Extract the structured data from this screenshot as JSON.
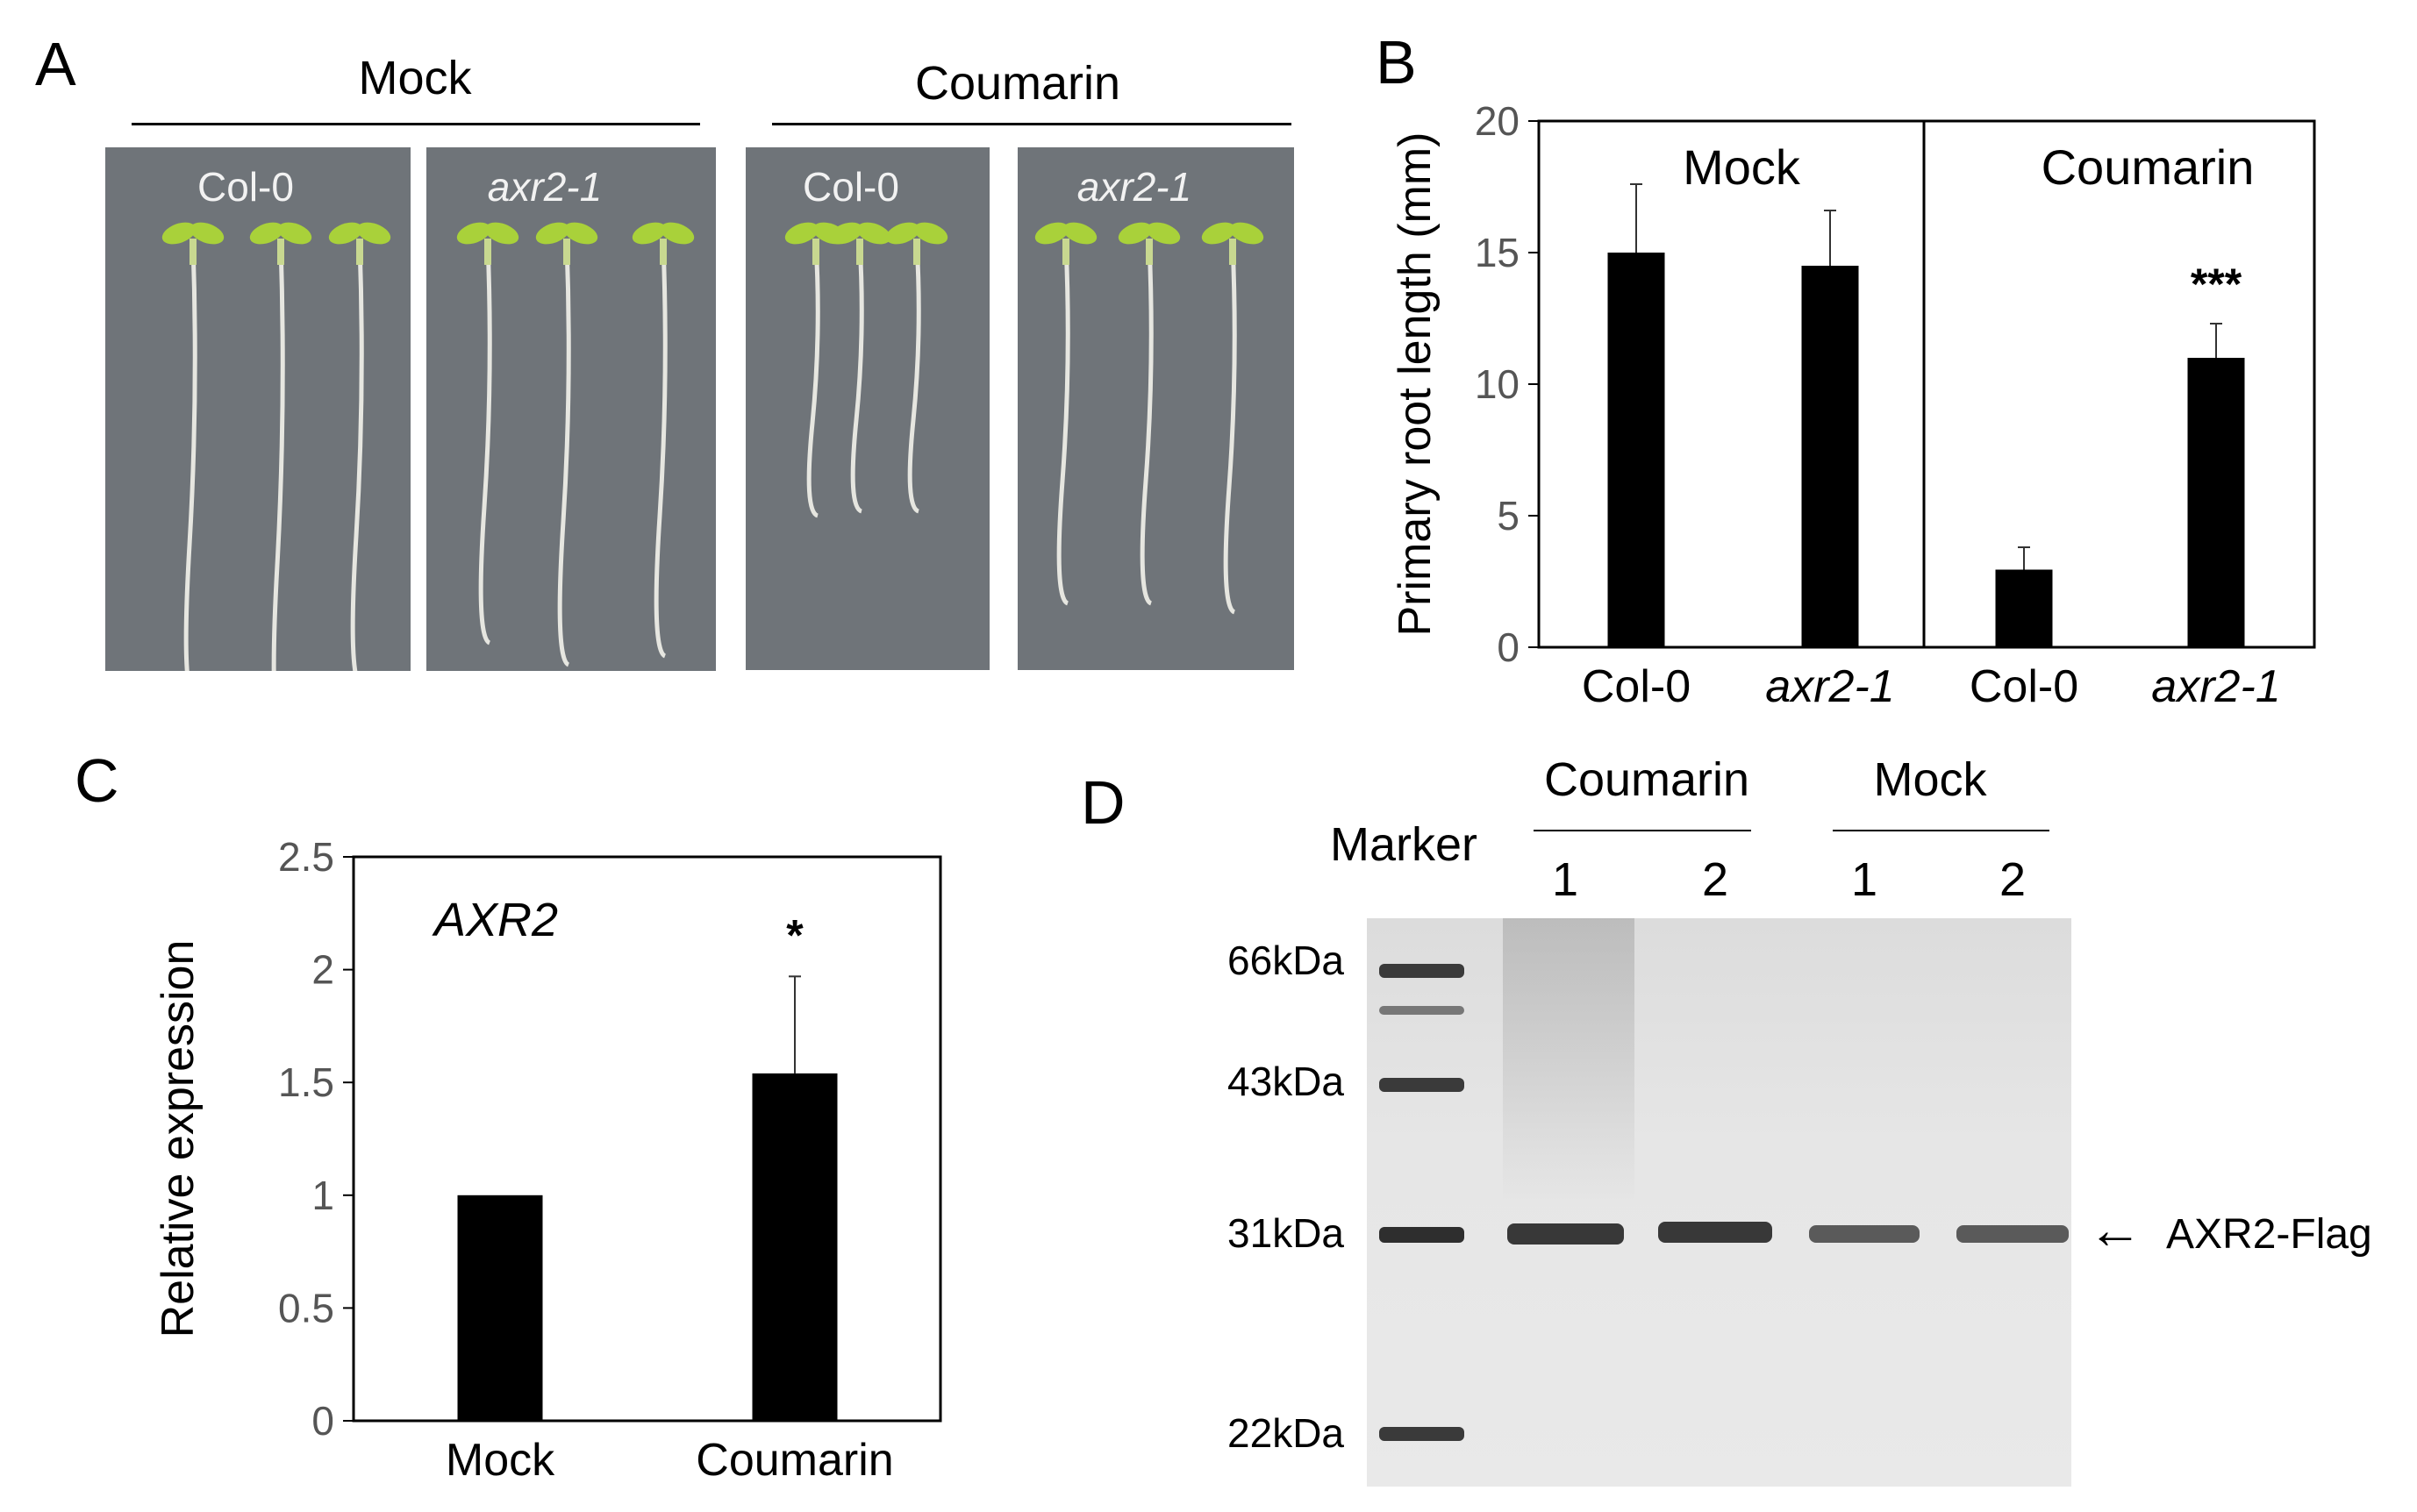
{
  "panels": {
    "A": {
      "letter": "A",
      "groups": [
        {
          "label": "Mock",
          "photos": [
            {
              "label": "Col-0",
              "italic": false
            },
            {
              "label": "axr2-1",
              "italic": true
            }
          ]
        },
        {
          "label": "Coumarin",
          "photos": [
            {
              "label": "Col-0",
              "italic": false
            },
            {
              "label": "axr2-1",
              "italic": true
            }
          ]
        }
      ],
      "colors": {
        "plate": "#6f7479",
        "cotyledon": "#a9d13a",
        "root": "#e6e6e0"
      }
    },
    "B": {
      "letter": "B"
    },
    "C": {
      "letter": "C"
    },
    "D": {
      "letter": "D",
      "marker_label": "Marker",
      "groups": [
        {
          "label": "Coumarin",
          "lanes": [
            "1",
            "2"
          ]
        },
        {
          "label": "Mock",
          "lanes": [
            "1",
            "2"
          ]
        }
      ],
      "sizes": [
        "66kDa",
        "43kDa",
        "31kDa",
        "22kDa"
      ],
      "band_label": "AXR2-Flag",
      "arrow": "←",
      "band_intensity": [
        0.85,
        0.85,
        0.65,
        0.65
      ]
    }
  },
  "chart_data": [
    {
      "panel": "B",
      "type": "bar",
      "ylabel": "Primary root length (mm)",
      "ylim": [
        0,
        20
      ],
      "yticks": [
        "0",
        "5",
        "10",
        "15",
        "20"
      ],
      "groups": [
        "Mock",
        "Coumarin"
      ],
      "categories": [
        "Col-0",
        "axr2-1",
        "Col-0",
        "axr2-1"
      ],
      "italic_categories": [
        false,
        true,
        false,
        true
      ],
      "values": [
        15.0,
        14.5,
        2.95,
        11.0
      ],
      "errors": [
        2.6,
        2.1,
        0.85,
        1.3
      ],
      "annotations": [
        "",
        "",
        "",
        "***"
      ],
      "bar_color": "#000000",
      "grid": false
    },
    {
      "panel": "C",
      "type": "bar",
      "title": "AXR2",
      "ylabel": "Relative expression",
      "ylim": [
        0,
        2.5
      ],
      "yticks": [
        "0",
        "0.5",
        "1",
        "1.5",
        "2",
        "2.5"
      ],
      "categories": [
        "Mock",
        "Coumarin"
      ],
      "values": [
        1.0,
        1.54
      ],
      "errors": [
        0.0,
        0.43
      ],
      "annotations": [
        "",
        "*"
      ],
      "bar_color": "#000000",
      "grid": false
    }
  ]
}
